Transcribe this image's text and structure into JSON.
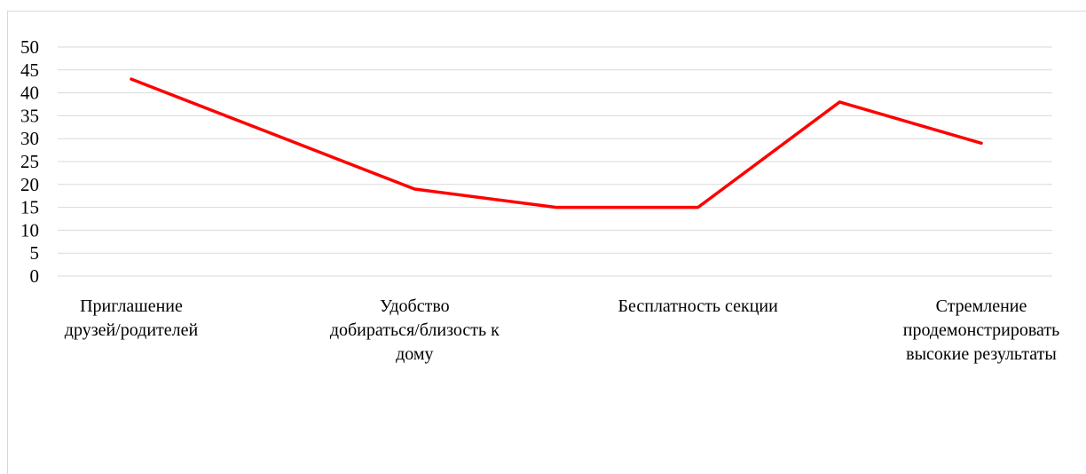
{
  "chart_data": {
    "type": "line",
    "title": "",
    "xlabel": "",
    "ylabel": "",
    "ylim": [
      0,
      50
    ],
    "yticks": [
      "0",
      "5",
      "10",
      "15",
      "20",
      "25",
      "30",
      "35",
      "40",
      "45",
      "50"
    ],
    "grid": true,
    "legend": "none",
    "categories": [
      "Приглашение друзей/родителей",
      "",
      "Удобство добираться/близость к дому",
      "",
      "Бесплатность секции",
      "",
      "Стремление продемонстрировать высокие результаты"
    ],
    "category_label_lines": [
      [
        "Приглашение",
        "друзей/родителей"
      ],
      [],
      [
        "Удобство",
        "добираться/близость к",
        "дому"
      ],
      [],
      [
        "Бесплатность секции"
      ],
      [],
      [
        "Стремление",
        "продемонстрировать",
        "высокие результаты"
      ]
    ],
    "series": [
      {
        "values": [
          43,
          31,
          19,
          15,
          15,
          38,
          29
        ],
        "color": "#ff0000"
      }
    ],
    "grid_color": "#d9d9d9"
  }
}
